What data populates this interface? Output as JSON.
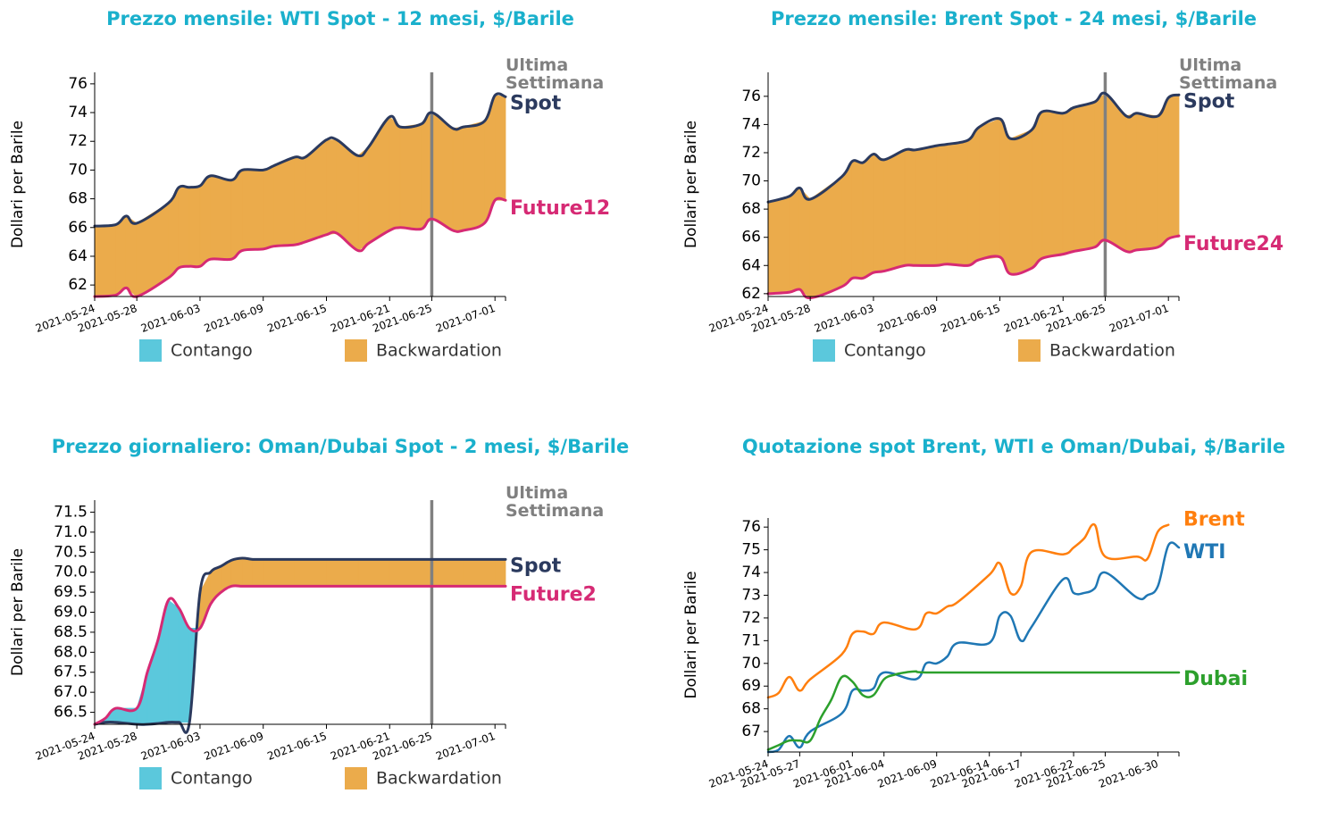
{
  "colors": {
    "title": "#1ab0cc",
    "spot": "#2b3a5e",
    "future": "#d62a74",
    "contango": "#5bc8dc",
    "backwardation": "#ebab4b",
    "week": "#808080",
    "brent": "#ff7f0e",
    "wti": "#1f77b4",
    "dubai": "#2ca02c"
  },
  "chart_data": [
    {
      "type": "area",
      "title": "Prezzo mensile: WTI Spot - 12 mesi, $/Barile",
      "ylabel": "Dollari per Barile",
      "ylim": [
        61.2,
        76.8
      ],
      "yticks": [
        "62",
        "64",
        "66",
        "68",
        "70",
        "72",
        "74",
        "76"
      ],
      "xticks": [
        "2021-05-24",
        "2021-05-28",
        "2021-06-03",
        "2021-06-09",
        "2021-06-15",
        "2021-06-21",
        "2021-06-25",
        "2021-07-01"
      ],
      "x_range": [
        "2021-05-24",
        "2021-07-02"
      ],
      "week_marker": "2021-06-25",
      "week_label": [
        "Ultima",
        "Settimana"
      ],
      "legend": [
        "Contango",
        "Backwardation"
      ],
      "legend_position": "bottom",
      "x": [
        "2021-05-24",
        "2021-05-26",
        "2021-05-27",
        "2021-05-28",
        "2021-05-31",
        "2021-06-01",
        "2021-06-02",
        "2021-06-03",
        "2021-06-04",
        "2021-06-06",
        "2021-06-07",
        "2021-06-09",
        "2021-06-10",
        "2021-06-12",
        "2021-06-13",
        "2021-06-15",
        "2021-06-16",
        "2021-06-18",
        "2021-06-19",
        "2021-06-21",
        "2021-06-22",
        "2021-06-24",
        "2021-06-25",
        "2021-06-27",
        "2021-06-28",
        "2021-06-30",
        "2021-07-01",
        "2021-07-02"
      ],
      "series": [
        {
          "name": "Spot",
          "values": [
            66.1,
            66.2,
            66.8,
            66.3,
            67.7,
            68.8,
            68.8,
            68.9,
            69.6,
            69.3,
            70.0,
            70.0,
            70.3,
            70.9,
            70.9,
            72.1,
            72.1,
            71.0,
            71.6,
            73.7,
            73.0,
            73.2,
            74.0,
            72.9,
            73.0,
            73.4,
            75.2,
            75.1
          ]
        },
        {
          "name": "Future12",
          "values": [
            61.2,
            61.3,
            61.8,
            61.2,
            62.5,
            63.2,
            63.3,
            63.3,
            63.8,
            63.8,
            64.4,
            64.5,
            64.7,
            64.8,
            65.0,
            65.5,
            65.6,
            64.4,
            64.9,
            65.8,
            66.0,
            65.9,
            66.6,
            65.8,
            65.8,
            66.3,
            67.9,
            67.9
          ]
        }
      ]
    },
    {
      "type": "area",
      "title": "Prezzo mensile: Brent Spot - 24 mesi, $/Barile",
      "ylabel": "Dollari per Barile",
      "ylim": [
        61.8,
        77.7
      ],
      "yticks": [
        "62",
        "64",
        "66",
        "68",
        "70",
        "72",
        "74",
        "76"
      ],
      "xticks": [
        "2021-05-24",
        "2021-05-28",
        "2021-06-03",
        "2021-06-09",
        "2021-06-15",
        "2021-06-21",
        "2021-06-25",
        "2021-07-01"
      ],
      "x_range": [
        "2021-05-24",
        "2021-07-02"
      ],
      "week_marker": "2021-06-25",
      "week_label": [
        "Ultima",
        "Settimana"
      ],
      "legend": [
        "Contango",
        "Backwardation"
      ],
      "legend_position": "bottom",
      "x": [
        "2021-05-24",
        "2021-05-26",
        "2021-05-27",
        "2021-05-28",
        "2021-05-31",
        "2021-06-01",
        "2021-06-02",
        "2021-06-03",
        "2021-06-04",
        "2021-06-06",
        "2021-06-07",
        "2021-06-09",
        "2021-06-10",
        "2021-06-12",
        "2021-06-13",
        "2021-06-15",
        "2021-06-16",
        "2021-06-18",
        "2021-06-19",
        "2021-06-21",
        "2021-06-22",
        "2021-06-24",
        "2021-06-25",
        "2021-06-27",
        "2021-06-28",
        "2021-06-30",
        "2021-07-01",
        "2021-07-02"
      ],
      "series": [
        {
          "name": "Spot",
          "values": [
            68.5,
            68.9,
            69.5,
            68.7,
            70.3,
            71.4,
            71.3,
            71.9,
            71.5,
            72.2,
            72.2,
            72.5,
            72.6,
            72.9,
            73.8,
            74.4,
            73.0,
            73.6,
            74.9,
            74.8,
            75.2,
            75.6,
            76.2,
            74.6,
            74.8,
            74.6,
            75.9,
            76.1
          ]
        },
        {
          "name": "Future24",
          "values": [
            62.0,
            62.1,
            62.3,
            61.7,
            62.5,
            63.1,
            63.1,
            63.5,
            63.6,
            64.0,
            64.0,
            64.0,
            64.1,
            64.0,
            64.4,
            64.6,
            63.4,
            63.8,
            64.5,
            64.8,
            65.0,
            65.3,
            65.8,
            65.0,
            65.1,
            65.3,
            65.9,
            66.1
          ]
        }
      ]
    },
    {
      "type": "area",
      "title": "Prezzo giornaliero: Oman/Dubai Spot - 2 mesi, $/Barile",
      "ylabel": "Dollari per Barile",
      "ylim": [
        66.2,
        71.8
      ],
      "yticks": [
        "66.5",
        "67.0",
        "67.5",
        "68.0",
        "68.5",
        "69.0",
        "69.5",
        "70.0",
        "70.5",
        "71.0",
        "71.5"
      ],
      "xticks": [
        "2021-05-24",
        "2021-05-28",
        "2021-06-03",
        "2021-06-09",
        "2021-06-15",
        "2021-06-21",
        "2021-06-25",
        "2021-07-01"
      ],
      "x_range": [
        "2021-05-24",
        "2021-07-02"
      ],
      "week_marker": "2021-06-25",
      "week_label": [
        "Ultima",
        "Settimana"
      ],
      "legend": [
        "Contango",
        "Backwardation"
      ],
      "legend_position": "bottom",
      "x": [
        "2021-05-24",
        "2021-05-25",
        "2021-05-26",
        "2021-05-28",
        "2021-05-29",
        "2021-05-30",
        "2021-05-31",
        "2021-06-01",
        "2021-06-02",
        "2021-06-03",
        "2021-06-04",
        "2021-06-05",
        "2021-06-06",
        "2021-06-07",
        "2021-06-08",
        "2021-06-09",
        "2021-06-12",
        "2021-06-15",
        "2021-06-18",
        "2021-06-21",
        "2021-06-25",
        "2021-06-28",
        "2021-07-01",
        "2021-07-02"
      ],
      "series": [
        {
          "name": "Spot",
          "values": [
            66.2,
            66.25,
            66.25,
            66.2,
            66.2,
            66.22,
            66.25,
            66.25,
            66.25,
            69.5,
            70.0,
            70.15,
            70.3,
            70.35,
            70.32,
            70.32,
            70.32,
            70.32,
            70.32,
            70.32,
            70.32,
            70.32,
            70.32,
            70.32
          ]
        },
        {
          "name": "Future2",
          "values": [
            66.2,
            66.35,
            66.6,
            66.6,
            67.5,
            68.3,
            69.3,
            69.1,
            68.6,
            68.6,
            69.2,
            69.5,
            69.65,
            69.65,
            69.65,
            69.65,
            69.65,
            69.65,
            69.65,
            69.65,
            69.65,
            69.65,
            69.65,
            69.65
          ]
        }
      ]
    },
    {
      "type": "line",
      "title": "Quotazione spot Brent, WTI e Oman/Dubai, $/Barile",
      "ylabel": "Dollari per Barile",
      "ylim": [
        66.1,
        76.4
      ],
      "yticks": [
        "67",
        "68",
        "69",
        "70",
        "71",
        "72",
        "73",
        "74",
        "75",
        "76"
      ],
      "xticks": [
        "2021-05-24",
        "2021-05-27",
        "2021-06-01",
        "2021-06-04",
        "2021-06-09",
        "2021-06-14",
        "2021-06-17",
        "2021-06-22",
        "2021-06-25",
        "2021-06-30"
      ],
      "x_range": [
        "2021-05-24",
        "2021-07-02"
      ],
      "series": [
        {
          "name": "Brent",
          "x": [
            "2021-05-24",
            "2021-05-25",
            "2021-05-26",
            "2021-05-27",
            "2021-05-28",
            "2021-05-31",
            "2021-06-01",
            "2021-06-02",
            "2021-06-03",
            "2021-06-04",
            "2021-06-07",
            "2021-06-08",
            "2021-06-09",
            "2021-06-10",
            "2021-06-11",
            "2021-06-14",
            "2021-06-15",
            "2021-06-16",
            "2021-06-17",
            "2021-06-18",
            "2021-06-21",
            "2021-06-22",
            "2021-06-23",
            "2021-06-24",
            "2021-06-25",
            "2021-06-28",
            "2021-06-29",
            "2021-06-30",
            "2021-07-01"
          ],
          "values": [
            68.5,
            68.7,
            69.4,
            68.8,
            69.3,
            70.4,
            71.3,
            71.4,
            71.3,
            71.8,
            71.5,
            72.2,
            72.2,
            72.5,
            72.7,
            73.9,
            74.4,
            73.1,
            73.4,
            74.9,
            74.8,
            75.1,
            75.5,
            76.1,
            74.7,
            74.7,
            74.6,
            75.8,
            76.1
          ]
        },
        {
          "name": "WTI",
          "x": [
            "2021-05-24",
            "2021-05-25",
            "2021-05-26",
            "2021-05-27",
            "2021-05-28",
            "2021-05-31",
            "2021-06-01",
            "2021-06-02",
            "2021-06-03",
            "2021-06-04",
            "2021-06-07",
            "2021-06-08",
            "2021-06-09",
            "2021-06-10",
            "2021-06-11",
            "2021-06-14",
            "2021-06-15",
            "2021-06-16",
            "2021-06-17",
            "2021-06-18",
            "2021-06-21",
            "2021-06-22",
            "2021-06-23",
            "2021-06-24",
            "2021-06-25",
            "2021-06-28",
            "2021-06-29",
            "2021-06-30",
            "2021-07-01",
            "2021-07-02"
          ],
          "values": [
            66.1,
            66.2,
            66.8,
            66.3,
            67.0,
            67.8,
            68.8,
            68.8,
            68.9,
            69.6,
            69.3,
            70.0,
            70.0,
            70.3,
            70.9,
            70.9,
            72.1,
            72.1,
            71.0,
            71.6,
            73.7,
            73.1,
            73.1,
            73.3,
            74.0,
            72.9,
            73.0,
            73.4,
            75.2,
            75.1
          ]
        },
        {
          "name": "Dubai",
          "x": [
            "2021-05-24",
            "2021-05-25",
            "2021-05-26",
            "2021-05-27",
            "2021-05-28",
            "2021-05-29",
            "2021-05-30",
            "2021-05-31",
            "2021-06-01",
            "2021-06-02",
            "2021-06-03",
            "2021-06-04",
            "2021-06-05",
            "2021-06-06",
            "2021-06-07",
            "2021-06-08",
            "2021-06-15",
            "2021-06-25",
            "2021-07-02"
          ],
          "values": [
            66.2,
            66.4,
            66.6,
            66.6,
            66.6,
            67.6,
            68.4,
            69.4,
            69.2,
            68.6,
            68.6,
            69.3,
            69.5,
            69.6,
            69.65,
            69.6,
            69.6,
            69.6,
            69.6
          ]
        }
      ]
    }
  ]
}
